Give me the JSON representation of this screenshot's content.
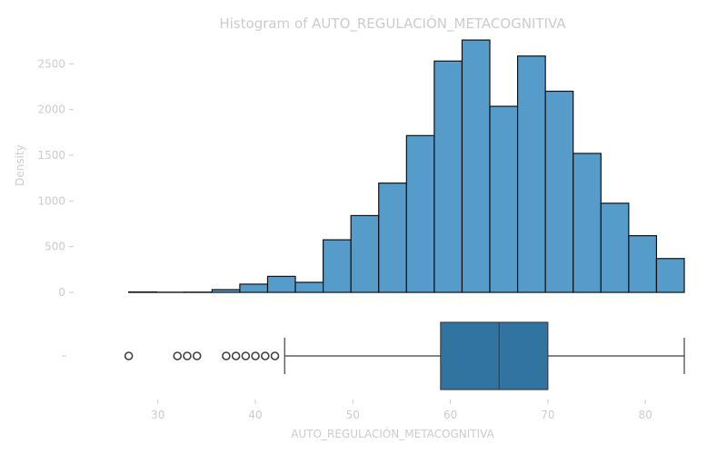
{
  "chart_data": {
    "type": "histogram",
    "title": "Histogram of AUTO_REGULACIÓN_METACOGNITIVA",
    "xlabel": "AUTO_REGULACIÓN_METACOGNITIVA",
    "ylabel": "Density",
    "xlim": [
      22,
      84
    ],
    "ylim": [
      0,
      2900
    ],
    "x_ticks": [
      30,
      40,
      50,
      60,
      70,
      80
    ],
    "y_ticks": [
      0,
      500,
      1000,
      1500,
      2000,
      2500
    ],
    "bins": [
      {
        "start": 27.0,
        "end": 29.85,
        "count": 5
      },
      {
        "start": 29.85,
        "end": 32.7,
        "count": 2
      },
      {
        "start": 32.7,
        "end": 35.55,
        "count": 3
      },
      {
        "start": 35.55,
        "end": 38.4,
        "count": 30
      },
      {
        "start": 38.4,
        "end": 41.25,
        "count": 90
      },
      {
        "start": 41.25,
        "end": 44.1,
        "count": 175
      },
      {
        "start": 44.1,
        "end": 46.95,
        "count": 110
      },
      {
        "start": 46.95,
        "end": 49.8,
        "count": 575
      },
      {
        "start": 49.8,
        "end": 52.65,
        "count": 840
      },
      {
        "start": 52.65,
        "end": 55.5,
        "count": 1195
      },
      {
        "start": 55.5,
        "end": 58.35,
        "count": 1715
      },
      {
        "start": 58.35,
        "end": 61.2,
        "count": 2530
      },
      {
        "start": 61.2,
        "end": 64.05,
        "count": 2760
      },
      {
        "start": 64.05,
        "end": 66.9,
        "count": 2035
      },
      {
        "start": 66.9,
        "end": 69.75,
        "count": 2585
      },
      {
        "start": 69.75,
        "end": 72.6,
        "count": 2200
      },
      {
        "start": 72.6,
        "end": 75.45,
        "count": 1520
      },
      {
        "start": 75.45,
        "end": 78.3,
        "count": 975
      },
      {
        "start": 78.3,
        "end": 81.15,
        "count": 620
      },
      {
        "start": 81.15,
        "end": 84.0,
        "count": 370
      }
    ],
    "boxplot": {
      "whisker_low": 43,
      "q1": 59,
      "median": 65,
      "q3": 70,
      "whisker_high": 84,
      "outliers": [
        27,
        32,
        33,
        34,
        37,
        38,
        39,
        40,
        41,
        42
      ],
      "y_tick_label": ""
    },
    "colors": {
      "bars": "#559ccb",
      "box": "#3274a1",
      "text": "#cccccc"
    }
  }
}
